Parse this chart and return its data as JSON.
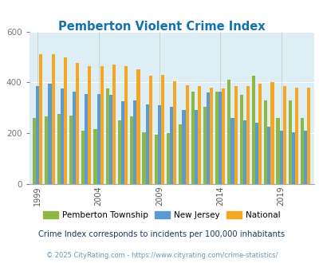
{
  "title": "Pemberton Violent Crime Index",
  "years": [
    1999,
    2000,
    2001,
    2002,
    2003,
    2004,
    2005,
    2006,
    2007,
    2008,
    2009,
    2010,
    2011,
    2012,
    2013,
    2014,
    2015,
    2016,
    2017,
    2018,
    2019,
    2020,
    2021
  ],
  "pemberton": [
    260,
    265,
    275,
    270,
    210,
    215,
    375,
    250,
    265,
    205,
    195,
    200,
    235,
    365,
    305,
    365,
    410,
    350,
    425,
    330,
    260,
    330,
    260
  ],
  "new_jersey": [
    385,
    395,
    375,
    365,
    355,
    355,
    350,
    325,
    330,
    315,
    310,
    305,
    290,
    290,
    360,
    365,
    260,
    250,
    240,
    225,
    210,
    205,
    210
  ],
  "national": [
    510,
    510,
    500,
    475,
    465,
    465,
    470,
    465,
    450,
    425,
    430,
    405,
    390,
    385,
    380,
    375,
    385,
    385,
    395,
    400,
    385,
    380,
    380
  ],
  "colors": {
    "pemberton": "#8db843",
    "new_jersey": "#5b9bd5",
    "national": "#f5a623"
  },
  "bg_color": "#ddeef4",
  "ylim": [
    0,
    600
  ],
  "yticks": [
    0,
    200,
    400,
    600
  ],
  "tick_years": [
    1999,
    2004,
    2009,
    2014,
    2019
  ],
  "title_color": "#1472ae",
  "title_fontsize": 10.5,
  "footnote1": "Crime Index corresponds to incidents per 100,000 inhabitants",
  "footnote2": "© 2025 CityRating.com - https://www.cityrating.com/crime-statistics/",
  "footnote1_color": "#1a3a5c",
  "footnote2_color": "#6699bb"
}
